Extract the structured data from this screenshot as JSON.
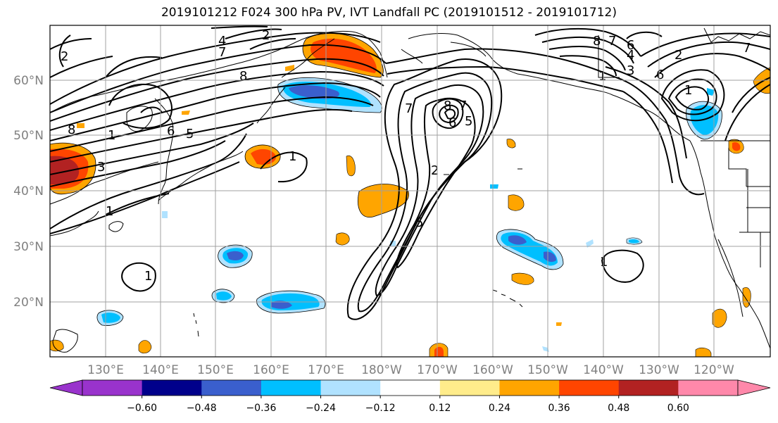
{
  "title": "2019101212 F024 300 hPa PV, IVT Landfall PC (2019101512 - 2019101712)",
  "lat_labels": [
    "60°N",
    "50°N",
    "40°N",
    "30°N",
    "20°N"
  ],
  "lon_labels": [
    "130°E",
    "140°E",
    "150°E",
    "160°E",
    "170°E",
    "180°W",
    "170°W",
    "160°W",
    "150°W",
    "140°W",
    "130°W",
    "120°W"
  ],
  "colorbar": {
    "colors": [
      "#9933cc",
      "#00008b",
      "#3a5fcd",
      "#00bfff",
      "#b0e2ff",
      "#ffffff",
      "#ffec8b",
      "#ffa500",
      "#ff4500",
      "#b22222",
      "#ff88aa"
    ],
    "tick_labels": [
      "−0.60",
      "−0.48",
      "−0.36",
      "−0.24",
      "−0.12",
      "0.12",
      "0.24",
      "0.36",
      "0.48",
      "0.60"
    ],
    "extend": "both"
  },
  "pv_contour_labels": [
    "2",
    "4",
    "7",
    "8",
    "2",
    "1",
    "8",
    "6",
    "5",
    "1",
    "1",
    "5",
    "2",
    "6",
    "8",
    "7",
    "7",
    "5",
    "3",
    "1",
    "8",
    "7",
    "6",
    "4",
    "3",
    "2",
    "6",
    "1",
    "1",
    "1",
    "7"
  ]
}
